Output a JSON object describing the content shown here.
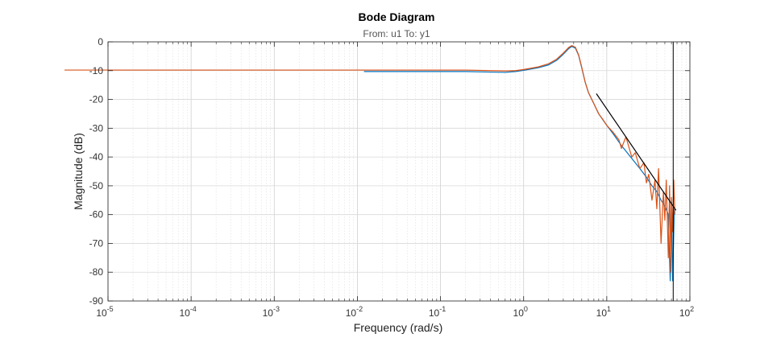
{
  "chart_data": {
    "type": "line",
    "title": "Bode Diagram",
    "subtitle": "From: u1  To: y1",
    "xlabel": "Frequency  (rad/s)",
    "ylabel": "Magnitude (dB)",
    "x_scale": "log",
    "xlim": [
      1e-05,
      100
    ],
    "ylim": [
      -90,
      0
    ],
    "grid": true,
    "x_ticks": [
      {
        "base": "10",
        "exp": "-5",
        "value": 1e-05
      },
      {
        "base": "10",
        "exp": "-4",
        "value": 0.0001
      },
      {
        "base": "10",
        "exp": "-3",
        "value": 0.001
      },
      {
        "base": "10",
        "exp": "-2",
        "value": 0.01
      },
      {
        "base": "10",
        "exp": "-1",
        "value": 0.1
      },
      {
        "base": "10",
        "exp": "0",
        "value": 1
      },
      {
        "base": "10",
        "exp": "1",
        "value": 10
      },
      {
        "base": "10",
        "exp": "2",
        "value": 100
      }
    ],
    "y_ticks": [
      "0",
      "-10",
      "-20",
      "-30",
      "-40",
      "-50",
      "-60",
      "-70",
      "-80",
      "-90"
    ],
    "series": [
      {
        "color": "#0072BD",
        "x": [
          0.012,
          0.05,
          0.1,
          0.2,
          0.4,
          0.6,
          0.8,
          1.0,
          1.5,
          2.0,
          2.5,
          3.0,
          3.5,
          3.8,
          4.2,
          4.6,
          5.0,
          5.5,
          6.0,
          7.0,
          8.0,
          10,
          12,
          15,
          20,
          25,
          30,
          35,
          40,
          45,
          50,
          55,
          58,
          60,
          62,
          65
        ],
        "y": [
          -10.3,
          -10.3,
          -10.3,
          -10.3,
          -10.5,
          -10.6,
          -10.3,
          -9.9,
          -9.0,
          -8.0,
          -6.4,
          -4.3,
          -2.3,
          -1.6,
          -2.2,
          -4.8,
          -9.0,
          -14.0,
          -17.5,
          -21.5,
          -25.0,
          -29.0,
          -32.0,
          -36.0,
          -40.5,
          -44.0,
          -47.0,
          -50.0,
          -52.0,
          -55.0,
          -57.0,
          -60.0,
          -83.0,
          -57.0,
          -83.0,
          -58.0
        ]
      },
      {
        "color": "#D95319",
        "x": [
          3e-06,
          0.001,
          0.01,
          0.1,
          0.2,
          0.4,
          0.6,
          0.8,
          1.0,
          1.5,
          2.0,
          2.5,
          3.0,
          3.5,
          3.8,
          4.2,
          4.6,
          5.0,
          5.5,
          6.0,
          7.0,
          8.0,
          9.0,
          10,
          12,
          14,
          15,
          17,
          20,
          22,
          25,
          28,
          30,
          32,
          35,
          38,
          40,
          42,
          45,
          48,
          50,
          52,
          55,
          57,
          59,
          60,
          62,
          64,
          66
        ],
        "y": [
          -9.8,
          -9.8,
          -9.8,
          -9.8,
          -9.8,
          -10.0,
          -10.1,
          -10.0,
          -9.6,
          -8.7,
          -7.6,
          -6.0,
          -3.9,
          -1.9,
          -1.3,
          -1.9,
          -4.6,
          -8.8,
          -14.0,
          -17.5,
          -21.5,
          -25.0,
          -27.0,
          -29.0,
          -31.5,
          -34.0,
          -37.0,
          -33.0,
          -40.0,
          -38.5,
          -44.0,
          -42.0,
          -49.0,
          -46.0,
          -55.0,
          -48.0,
          -58.0,
          -44.0,
          -70.0,
          -52.0,
          -62.0,
          -48.0,
          -75.0,
          -50.0,
          -80.0,
          -54.0,
          -66.0,
          -48.0,
          -60.0
        ]
      },
      {
        "color": "#000000",
        "x": [
          7.5,
          68
        ],
        "y": [
          -18.0,
          -58.5
        ]
      }
    ],
    "vertical_line": {
      "x": 63,
      "color": "#000000"
    }
  }
}
